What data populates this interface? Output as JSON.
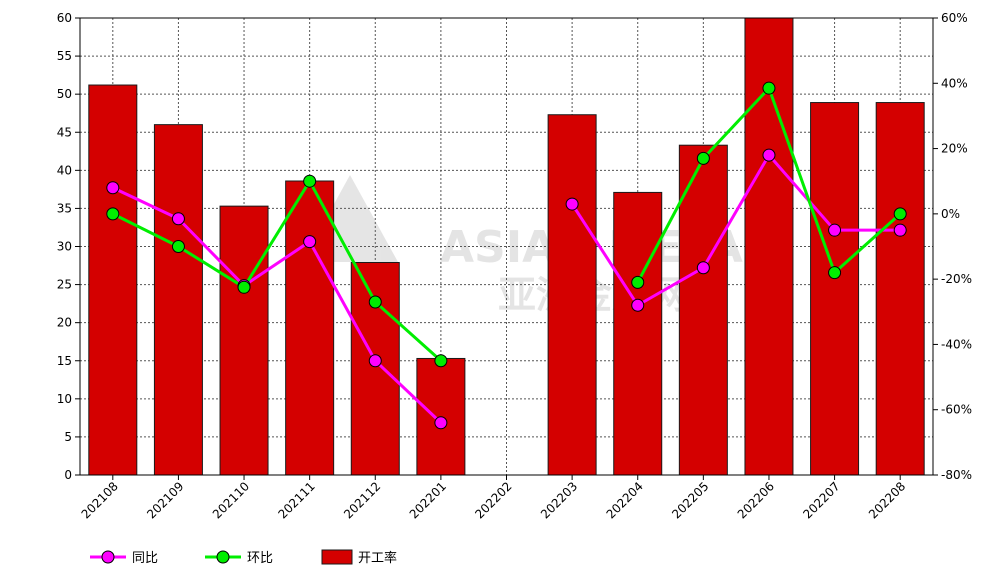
{
  "chart_data": {
    "type": "bar",
    "categories": [
      "202108",
      "202109",
      "202110",
      "202111",
      "202112",
      "202201",
      "202202",
      "202203",
      "202204",
      "202205",
      "202206",
      "202207",
      "202208"
    ],
    "series": [
      {
        "name": "开工率",
        "type": "bar",
        "axis": "left",
        "color": "#d40000",
        "values": [
          51.2,
          46.0,
          35.3,
          38.6,
          27.9,
          15.3,
          null,
          47.3,
          37.1,
          43.3,
          60.0,
          48.9,
          48.9
        ]
      },
      {
        "name": "同比",
        "type": "line",
        "axis": "right",
        "color": "#ff00ff",
        "values": [
          8.0,
          -1.5,
          -22.0,
          -8.5,
          -45.0,
          -64.0,
          null,
          3.0,
          -28.0,
          -16.5,
          18.0,
          -5.0,
          -5.0
        ]
      },
      {
        "name": "环比",
        "type": "line",
        "axis": "right",
        "color": "#00ee00",
        "values": [
          0.0,
          -10.0,
          -22.5,
          10.0,
          -27.0,
          -45.0,
          null,
          null,
          -21.0,
          17.0,
          38.5,
          -18.0,
          0.0
        ]
      }
    ],
    "left_axis": {
      "ylim": [
        0,
        60
      ],
      "ticks": [
        "0",
        "5",
        "10",
        "15",
        "20",
        "25",
        "30",
        "35",
        "40",
        "45",
        "50",
        "55",
        "60"
      ]
    },
    "right_axis": {
      "ylim": [
        -80,
        60
      ],
      "ticks": [
        "-80%",
        "-60%",
        "-40%",
        "-20%",
        "0%",
        "20%",
        "40%",
        "60%"
      ]
    },
    "grid": true,
    "legend_position": "bottom-left"
  },
  "watermark": {
    "text_en": "ASIAN METAL",
    "text_cn": "亚洲金属网"
  }
}
